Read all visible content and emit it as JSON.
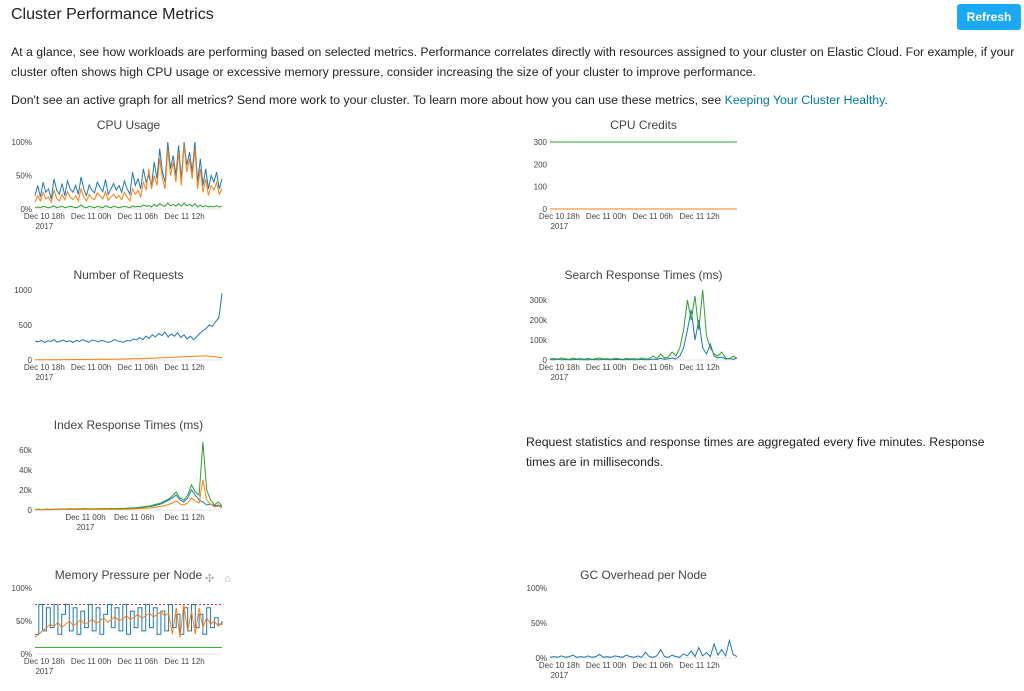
{
  "header": {
    "title": "Cluster Performance Metrics",
    "refresh_label": "Refresh"
  },
  "intro": {
    "text": "At a glance, see how workloads are performing based on selected metrics. Performance correlates directly with resources assigned to your cluster on Elastic Cloud. For example, if your cluster often shows high CPU usage or excessive memory pressure, consider increasing the size of your cluster to improve performance.",
    "more_prefix": "Don't see an active graph for all metrics? Send more work to your cluster. To learn more about how you can use these metrics, see ",
    "more_link": "Keeping Your Cluster Healthy",
    "more_suffix": "."
  },
  "note": "Request statistics and response times are aggregated every five minutes. Response times are in milliseconds.",
  "modebar": {
    "pan_icon": "move-icon",
    "home_icon": "home-icon"
  },
  "colors": {
    "blue": "#1f77b4",
    "orange": "#ff7f0e",
    "green": "#2ca02c",
    "red": "#d62728"
  },
  "chart_data": [
    {
      "id": "cpu-usage",
      "type": "line",
      "title": "CPU Usage",
      "x_ticks": [
        "Dec 10 18h",
        "Dec 11 00h",
        "Dec 11 06h",
        "Dec 11 12h"
      ],
      "x_year": "2017",
      "y_ticks": [
        "100%",
        "50%",
        "0%"
      ],
      "ylim": [
        0,
        100
      ],
      "series": [
        {
          "color": "#1f77b4",
          "values": [
            20,
            35,
            18,
            40,
            25,
            30,
            15,
            45,
            28,
            22,
            38,
            20,
            42,
            30,
            25,
            35,
            22,
            48,
            30,
            20,
            36,
            28,
            24,
            40,
            32,
            26,
            44,
            22,
            30,
            38,
            28,
            35,
            25,
            42,
            30,
            22,
            55,
            35,
            45,
            30,
            60,
            40,
            50,
            35,
            70,
            45,
            90,
            55,
            40,
            100,
            60,
            80,
            50,
            95,
            45,
            100,
            65,
            85,
            55,
            100,
            40,
            75,
            35,
            60,
            30,
            50,
            40,
            55,
            30,
            45
          ]
        },
        {
          "color": "#ff7f0e",
          "values": [
            10,
            20,
            12,
            25,
            15,
            18,
            10,
            28,
            16,
            12,
            22,
            14,
            26,
            18,
            14,
            20,
            12,
            30,
            18,
            12,
            22,
            16,
            14,
            24,
            20,
            15,
            26,
            13,
            18,
            22,
            16,
            20,
            14,
            25,
            18,
            12,
            30,
            22,
            28,
            18,
            40,
            28,
            60,
            30,
            50,
            35,
            75,
            45,
            30,
            90,
            50,
            70,
            40,
            85,
            35,
            95,
            55,
            75,
            45,
            90,
            30,
            60,
            25,
            45,
            20,
            35,
            28,
            40,
            22,
            30
          ]
        },
        {
          "color": "#2ca02c",
          "values": [
            2,
            3,
            2,
            4,
            3,
            2,
            3,
            5,
            2,
            3,
            4,
            2,
            3,
            4,
            3,
            2,
            3,
            6,
            3,
            2,
            4,
            3,
            2,
            4,
            3,
            2,
            5,
            3,
            2,
            4,
            3,
            2,
            3,
            4,
            3,
            2,
            5,
            3,
            4,
            3,
            6,
            4,
            5,
            3,
            7,
            4,
            8,
            5,
            4,
            9,
            5,
            7,
            4,
            8,
            4,
            9,
            5,
            7,
            4,
            8,
            3,
            6,
            3,
            5,
            3,
            4,
            3,
            5,
            3,
            4
          ]
        }
      ]
    },
    {
      "id": "cpu-credits",
      "type": "line",
      "title": "CPU Credits",
      "x_ticks": [
        "Dec 10 18h",
        "Dec 11 00h",
        "Dec 11 06h",
        "Dec 11 12h"
      ],
      "x_year": "2017",
      "y_ticks": [
        "300",
        "200",
        "100",
        "0"
      ],
      "ylim": [
        0,
        300
      ],
      "series": [
        {
          "color": "#2ca02c",
          "values": [
            300,
            300,
            300,
            300,
            300,
            300,
            300,
            300,
            300,
            300
          ]
        },
        {
          "color": "#ff7f0e",
          "values": [
            0,
            0,
            0,
            0,
            0,
            0,
            0,
            0,
            0,
            0
          ]
        }
      ]
    },
    {
      "id": "number-of-requests",
      "type": "line",
      "title": "Number of Requests",
      "x_ticks": [
        "Dec 10 18h",
        "Dec 11 00h",
        "Dec 11 06h",
        "Dec 11 12h"
      ],
      "x_year": "2017",
      "y_ticks": [
        "1000",
        "500",
        "0"
      ],
      "ylim": [
        0,
        1000
      ],
      "series": [
        {
          "color": "#1f77b4",
          "values": [
            270,
            260,
            280,
            250,
            275,
            265,
            290,
            255,
            270,
            285,
            260,
            275,
            250,
            280,
            265,
            290,
            270,
            255,
            285,
            275,
            260,
            280,
            270,
            250,
            265,
            290,
            275,
            260,
            255,
            280,
            270,
            300,
            285,
            320,
            290,
            340,
            310,
            360,
            330,
            380,
            350,
            400,
            330,
            370,
            340,
            390,
            320,
            360,
            300,
            340,
            290,
            330,
            380,
            420,
            450,
            500,
            480,
            550,
            600,
            950
          ]
        },
        {
          "color": "#ff7f0e",
          "values": [
            5,
            5,
            5,
            5,
            5,
            5,
            5,
            5,
            6,
            6,
            6,
            6,
            7,
            7,
            7,
            8,
            8,
            8,
            9,
            9,
            10,
            10,
            11,
            11,
            12,
            12,
            13,
            13,
            14,
            15,
            16,
            17,
            18,
            19,
            20,
            22,
            24,
            26,
            28,
            30,
            32,
            34,
            36,
            38,
            40,
            42,
            44,
            46,
            48,
            50,
            52,
            54,
            56,
            58,
            60,
            55,
            50,
            45,
            40,
            35
          ]
        }
      ]
    },
    {
      "id": "search-response-times",
      "type": "line",
      "title": "Search Response Times (ms)",
      "x_ticks": [
        "Dec 10 18h",
        "Dec 11 00h",
        "Dec 11 06h",
        "Dec 11 12h"
      ],
      "x_year": "2017",
      "y_ticks": [
        "300k",
        "200k",
        "100k",
        "0"
      ],
      "ylim": [
        0,
        350000
      ],
      "series": [
        {
          "color": "#1f77b4",
          "values": [
            2000,
            1000,
            3000,
            1500,
            2500,
            1000,
            2000,
            3000,
            1500,
            2000,
            1000,
            2500,
            2000,
            1500,
            3000,
            2000,
            1000,
            2500,
            3000,
            1500,
            2000,
            2500,
            1000,
            2000,
            3000,
            1500,
            2000,
            5000,
            3000,
            8000,
            4000,
            6000,
            10000,
            5000,
            20000,
            60000,
            150000,
            250000,
            100000,
            200000,
            60000,
            30000,
            80000,
            20000,
            10000,
            15000,
            5000,
            8000,
            3000,
            10000
          ]
        },
        {
          "color": "#2ca02c",
          "values": [
            5000,
            8000,
            4000,
            10000,
            6000,
            3000,
            9000,
            5000,
            7000,
            4000,
            8000,
            3000,
            6000,
            10000,
            5000,
            7000,
            4000,
            9000,
            6000,
            3000,
            8000,
            5000,
            7000,
            4000,
            10000,
            6000,
            5000,
            20000,
            8000,
            30000,
            10000,
            15000,
            40000,
            20000,
            60000,
            150000,
            300000,
            200000,
            320000,
            150000,
            350000,
            120000,
            60000,
            30000,
            20000,
            40000,
            10000,
            5000,
            20000,
            8000
          ]
        }
      ]
    },
    {
      "id": "index-response-times",
      "type": "line",
      "title": "Index Response Times (ms)",
      "x_ticks": [
        "Dec 11 00h",
        "Dec 11 06h",
        "Dec 11 12h"
      ],
      "x_year": "2017",
      "y_ticks": [
        "60k",
        "40k",
        "20k",
        "0"
      ],
      "ylim": [
        0,
        70000
      ],
      "series": [
        {
          "color": "#1f77b4",
          "values": [
            500,
            600,
            400,
            700,
            500,
            800,
            600,
            900,
            700,
            1000,
            800,
            1100,
            900,
            1200,
            1000,
            900,
            1100,
            1000,
            1200,
            1100,
            1300,
            1200,
            1400,
            1300,
            1500,
            1600,
            1800,
            2000,
            2500,
            3000,
            3500,
            4000,
            5000,
            6000,
            8000,
            10000,
            12000,
            15000,
            10000,
            8000,
            12000,
            20000,
            15000,
            10000,
            8000,
            5000,
            6000,
            4000,
            5000,
            3000
          ]
        },
        {
          "color": "#2ca02c",
          "values": [
            600,
            700,
            500,
            800,
            600,
            900,
            700,
            1000,
            900,
            1200,
            1000,
            1300,
            1100,
            1400,
            1200,
            1100,
            1300,
            1200,
            1400,
            1300,
            1500,
            1400,
            1600,
            1500,
            1800,
            2000,
            2200,
            2500,
            3000,
            3500,
            4000,
            5000,
            6000,
            7000,
            9000,
            11000,
            14000,
            18000,
            12000,
            10000,
            15000,
            25000,
            18000,
            15000,
            68000,
            20000,
            10000,
            5000,
            8000,
            4000
          ]
        },
        {
          "color": "#ff7f0e",
          "values": [
            300,
            350,
            300,
            400,
            350,
            450,
            400,
            500,
            450,
            550,
            500,
            600,
            550,
            650,
            600,
            550,
            650,
            600,
            700,
            650,
            750,
            700,
            800,
            750,
            900,
            1000,
            1100,
            1300,
            1500,
            1800,
            2000,
            2500,
            3000,
            3500,
            4500,
            5500,
            7000,
            9000,
            6000,
            5000,
            7000,
            12000,
            9000,
            7000,
            30000,
            10000,
            6000,
            3000,
            4000,
            2500
          ]
        }
      ]
    },
    {
      "id": "memory-pressure-per-node",
      "type": "line",
      "title": "Memory Pressure per Node",
      "x_ticks": [
        "Dec 10 18h",
        "Dec 11 00h",
        "Dec 11 06h",
        "Dec 11 12h"
      ],
      "x_year": "2017",
      "y_ticks": [
        "100%",
        "50%",
        "0%"
      ],
      "ylim": [
        0,
        100
      ],
      "series": [
        {
          "color": "#d62728",
          "dash": true,
          "values": [
            75,
            75,
            75,
            75,
            75,
            75,
            75,
            75,
            75,
            75
          ]
        },
        {
          "color": "#1f77b4",
          "step": true,
          "values": [
            30,
            75,
            35,
            70,
            40,
            75,
            30,
            60,
            75,
            35,
            70,
            30,
            65,
            40,
            75,
            35,
            70,
            30,
            60,
            75,
            40,
            70,
            35,
            75,
            30,
            65,
            40,
            70,
            35,
            75,
            40,
            70,
            30,
            65,
            35,
            75,
            40,
            60,
            30,
            70,
            35,
            75,
            40,
            60,
            30,
            70,
            40,
            55,
            45,
            50
          ]
        },
        {
          "color": "#ff7f0e",
          "values": [
            25,
            30,
            35,
            40,
            45,
            42,
            48,
            40,
            45,
            50,
            43,
            47,
            52,
            45,
            48,
            53,
            46,
            50,
            55,
            48,
            52,
            57,
            50,
            54,
            58,
            52,
            56,
            60,
            54,
            58,
            62,
            56,
            60,
            64,
            58,
            62,
            30,
            70,
            25,
            75,
            35,
            65,
            30,
            70,
            40,
            55,
            45,
            50,
            42,
            48
          ]
        },
        {
          "color": "#2ca02c",
          "values": [
            10,
            10,
            10,
            10,
            10,
            10,
            10,
            10,
            10,
            10
          ]
        }
      ]
    },
    {
      "id": "gc-overhead-per-node",
      "type": "line",
      "title": "GC Overhead per Node",
      "x_ticks": [
        "Dec 10 18h",
        "Dec 11 00h",
        "Dec 11 06h",
        "Dec 11 12h"
      ],
      "x_year": "2017",
      "y_ticks": [
        "100%",
        "50%",
        "0%"
      ],
      "ylim": [
        0,
        100
      ],
      "series": [
        {
          "color": "#1f77b4",
          "values": [
            1,
            2,
            1,
            3,
            1,
            2,
            4,
            1,
            2,
            1,
            3,
            1,
            2,
            5,
            1,
            2,
            1,
            3,
            2,
            1,
            4,
            2,
            1,
            3,
            1,
            8,
            2,
            1,
            3,
            12,
            2,
            1,
            4,
            2,
            1,
            6,
            3,
            10,
            2,
            15,
            3,
            8,
            2,
            20,
            4,
            12,
            3,
            25,
            5,
            2
          ]
        }
      ]
    }
  ]
}
